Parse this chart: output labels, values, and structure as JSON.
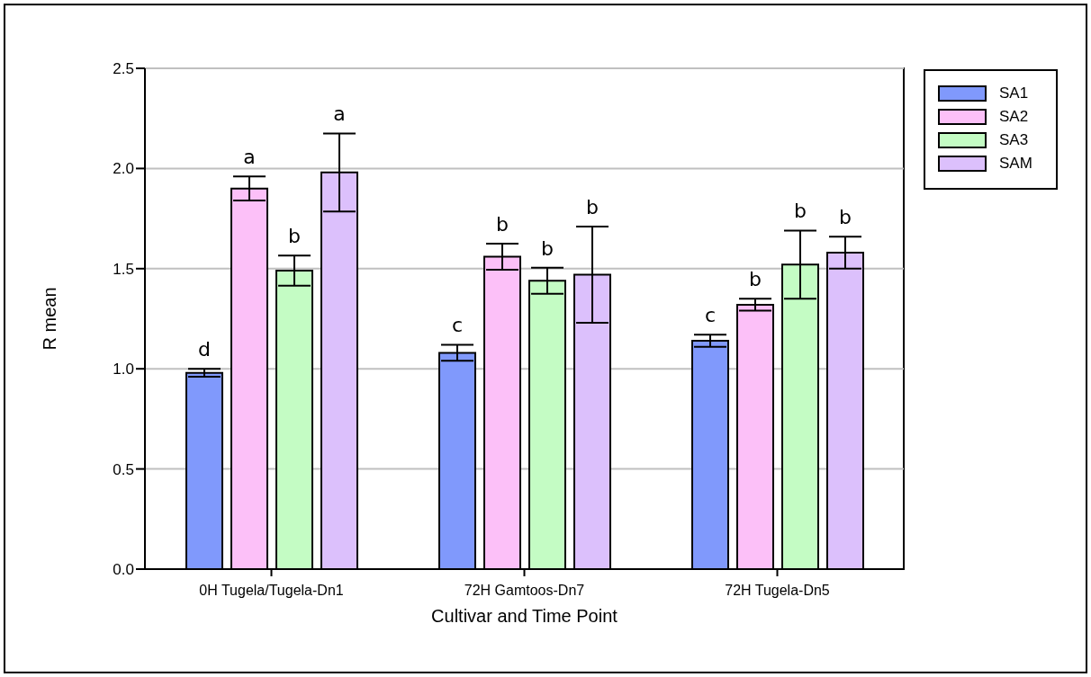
{
  "chart_data": {
    "type": "bar",
    "xlabel": "Cultivar and Time Point",
    "ylabel": "R mean",
    "categories": [
      "0H Tugela/Tugela-Dn1",
      "72H Gamtoos-Dn7",
      "72H Tugela-Dn5"
    ],
    "series": [
      {
        "name": "SA1",
        "color": "#8099fc",
        "values": [
          0.98,
          1.08,
          1.14
        ],
        "errors": [
          0.02,
          0.04,
          0.03
        ],
        "value_labels": [
          "d",
          "c",
          "c"
        ]
      },
      {
        "name": "SA2",
        "color": "#fcc0f8",
        "values": [
          1.9,
          1.56,
          1.32
        ],
        "errors": [
          0.06,
          0.065,
          0.03
        ],
        "value_labels": [
          "a",
          "b",
          "b"
        ]
      },
      {
        "name": "SA3",
        "color": "#c4fcc4",
        "values": [
          1.49,
          1.44,
          1.52
        ],
        "errors": [
          0.075,
          0.065,
          0.17
        ],
        "value_labels": [
          "b",
          "b",
          "b"
        ]
      },
      {
        "name": "SAM",
        "color": "#dcc0fc",
        "values": [
          1.98,
          1.47,
          1.58
        ],
        "errors": [
          0.195,
          0.24,
          0.08
        ],
        "value_labels": [
          "a",
          "b",
          "b"
        ]
      }
    ],
    "ylim": [
      0,
      2.5
    ],
    "yticks": [
      {
        "value": 0,
        "label": "0.0"
      },
      {
        "value": 0.5,
        "label": "0.5"
      },
      {
        "value": 1,
        "label": "1.0"
      },
      {
        "value": 1.5,
        "label": "1.5"
      },
      {
        "value": 2,
        "label": "2.0"
      },
      {
        "value": 2.5,
        "label": "2.5"
      }
    ],
    "grid": "y",
    "legend": "top right"
  }
}
